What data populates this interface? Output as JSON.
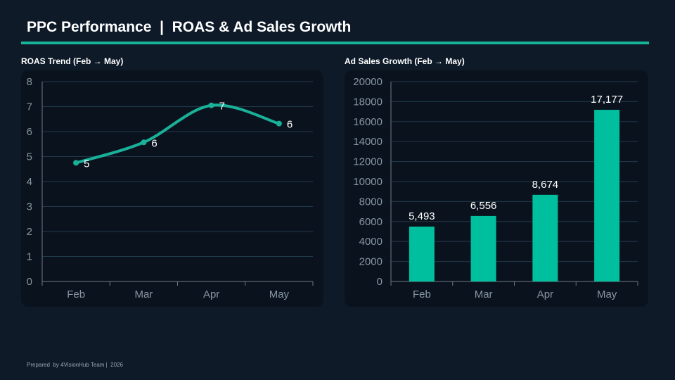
{
  "header": {
    "title": "PPC Performance  |  ROAS & Ad Sales Growth"
  },
  "footer": {
    "text": "Prepared  by 4VisionHub Team |  2026"
  },
  "colors": {
    "background": "#0e1a28",
    "panel": "#0a131d",
    "accent": "#16b59a",
    "bar": "#00bf9f",
    "line": "#1ab19a",
    "grid": "#21384b",
    "tick_text": "#8795a3"
  },
  "chart_data": [
    {
      "type": "line",
      "title": "ROAS Trend (Feb → May)",
      "categories": [
        "Feb",
        "Mar",
        "Apr",
        "May"
      ],
      "values": [
        4.75,
        5.57,
        7.05,
        6.32
      ],
      "data_labels": [
        "5",
        "6",
        "7",
        "6"
      ],
      "xlabel": "",
      "ylabel": "",
      "ylim": [
        0,
        8
      ],
      "yticks": [
        "0",
        "1",
        "2",
        "3",
        "4",
        "5",
        "6",
        "7",
        "8"
      ],
      "smooth": true,
      "grid": true,
      "legend": "none"
    },
    {
      "type": "bar",
      "title": "Ad Sales Growth (Feb → May)",
      "categories": [
        "Feb",
        "Mar",
        "Apr",
        "May"
      ],
      "values": [
        5493,
        6556,
        8674,
        17177
      ],
      "data_labels": [
        "5,493",
        "6,556",
        "8,674",
        "17,177"
      ],
      "xlabel": "",
      "ylabel": "",
      "ylim": [
        0,
        20000
      ],
      "yticks": [
        "0",
        "2000",
        "4000",
        "6000",
        "8000",
        "10000",
        "12000",
        "14000",
        "16000",
        "18000",
        "20000"
      ],
      "grid": true,
      "legend": "none"
    }
  ]
}
